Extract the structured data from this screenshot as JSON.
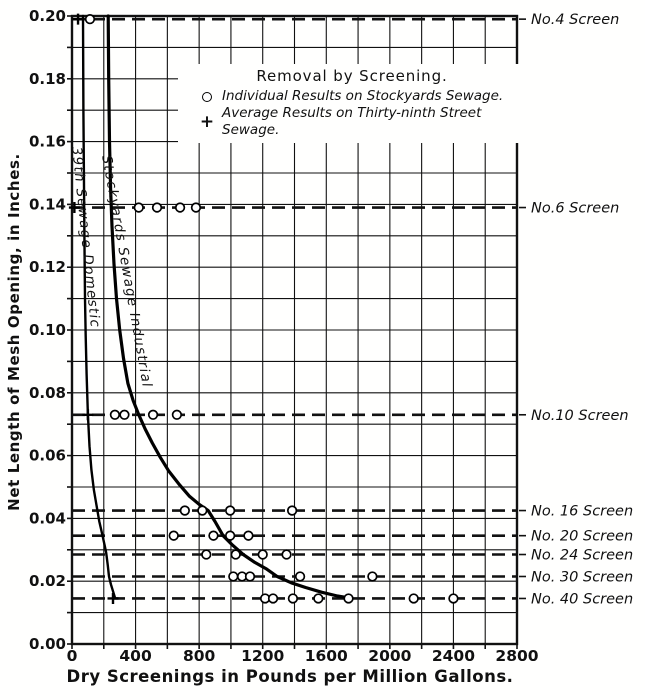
{
  "figure": {
    "background": "#ffffff",
    "ink": "#111111"
  },
  "chart_data": {
    "type": "line",
    "title": "Removal by Screening.",
    "xlabel": "Dry Screenings in Pounds per Million Gallons.",
    "ylabel": "Net Length of Mesh Opening, in Inches.",
    "xlim": [
      0,
      2800
    ],
    "ylim": [
      0,
      0.2
    ],
    "x_ticks": [
      0,
      400,
      800,
      1200,
      1600,
      2000,
      2400,
      2800
    ],
    "y_ticks": [
      0.0,
      0.02,
      0.04,
      0.06,
      0.08,
      0.1,
      0.12,
      0.14,
      0.16,
      0.18,
      0.2
    ],
    "x_grid_step": 200,
    "y_grid_step": 0.01,
    "grid": "on",
    "legend": {
      "title": "Removal by Screening.",
      "position": "upper-middle",
      "entries": [
        {
          "marker": "circle",
          "label": "Individual Results on Stockyards Sewage."
        },
        {
          "marker": "plus",
          "label": "Average Results on Thirty-ninth Street Sewage."
        }
      ]
    },
    "screen_lines": [
      {
        "label": "No.4 Screen",
        "mesh_opening_in": 0.199,
        "circle_points_lb_per_mg": [
          113
        ],
        "plus_points_lb_per_mg": [
          38
        ]
      },
      {
        "label": "No.6 Screen",
        "mesh_opening_in": 0.139,
        "circle_points_lb_per_mg": [
          420,
          535,
          680,
          780
        ],
        "plus_points_lb_per_mg": [
          15
        ]
      },
      {
        "label": "No.10 Screen",
        "mesh_opening_in": 0.073,
        "circle_points_lb_per_mg": [
          270,
          330,
          510,
          660
        ],
        "plus_points_lb_per_mg": [
          100
        ]
      },
      {
        "label": "No. 16 Screen",
        "mesh_opening_in": 0.0425,
        "circle_points_lb_per_mg": [
          710,
          820,
          995,
          1385
        ],
        "plus_points_lb_per_mg": []
      },
      {
        "label": "No. 20 Screen",
        "mesh_opening_in": 0.0345,
        "circle_points_lb_per_mg": [
          640,
          890,
          995,
          1110
        ],
        "plus_points_lb_per_mg": []
      },
      {
        "label": "No. 24 Screen",
        "mesh_opening_in": 0.0285,
        "circle_points_lb_per_mg": [
          845,
          1030,
          1200,
          1350
        ],
        "plus_points_lb_per_mg": []
      },
      {
        "label": "No. 30 Screen",
        "mesh_opening_in": 0.0215,
        "circle_points_lb_per_mg": [
          1015,
          1070,
          1120,
          1435,
          1890
        ],
        "plus_points_lb_per_mg": []
      },
      {
        "label": "No. 40 Screen",
        "mesh_opening_in": 0.0145,
        "circle_points_lb_per_mg": [
          1215,
          1265,
          1390,
          1550,
          1740,
          2150,
          2400
        ],
        "plus_points_lb_per_mg": [
          258
        ]
      }
    ],
    "series": [
      {
        "name": "39th Sewage Domestic",
        "style": "solid",
        "points": [
          [
            69,
            0.2
          ],
          [
            72,
            0.17
          ],
          [
            75,
            0.15
          ],
          [
            78,
            0.13
          ],
          [
            82,
            0.11
          ],
          [
            86,
            0.098
          ],
          [
            92,
            0.086
          ],
          [
            100,
            0.073
          ],
          [
            110,
            0.063
          ],
          [
            122,
            0.0555
          ],
          [
            138,
            0.049
          ],
          [
            155,
            0.044
          ],
          [
            172,
            0.039
          ],
          [
            190,
            0.035
          ],
          [
            205,
            0.0315
          ],
          [
            215,
            0.029
          ],
          [
            225,
            0.025
          ],
          [
            233,
            0.0215
          ],
          [
            245,
            0.019
          ],
          [
            258,
            0.0168
          ],
          [
            270,
            0.0148
          ]
        ]
      },
      {
        "name": "Stockyards Sewage Industrial",
        "style": "solid",
        "points": [
          [
            228,
            0.2
          ],
          [
            231,
            0.18
          ],
          [
            236,
            0.16
          ],
          [
            243,
            0.145
          ],
          [
            252,
            0.133
          ],
          [
            264,
            0.121
          ],
          [
            280,
            0.11
          ],
          [
            300,
            0.1
          ],
          [
            324,
            0.091
          ],
          [
            352,
            0.083
          ],
          [
            385,
            0.0775
          ],
          [
            420,
            0.073
          ],
          [
            460,
            0.0685
          ],
          [
            505,
            0.064
          ],
          [
            555,
            0.0595
          ],
          [
            610,
            0.055
          ],
          [
            672,
            0.051
          ],
          [
            740,
            0.047
          ],
          [
            800,
            0.0445
          ],
          [
            857,
            0.0425
          ],
          [
            900,
            0.039
          ],
          [
            951,
            0.0345
          ],
          [
            1010,
            0.0315
          ],
          [
            1077,
            0.0285
          ],
          [
            1150,
            0.026
          ],
          [
            1220,
            0.024
          ],
          [
            1291,
            0.0215
          ],
          [
            1380,
            0.0195
          ],
          [
            1470,
            0.018
          ],
          [
            1570,
            0.0165
          ],
          [
            1670,
            0.0153
          ],
          [
            1740,
            0.0147
          ]
        ]
      }
    ]
  }
}
